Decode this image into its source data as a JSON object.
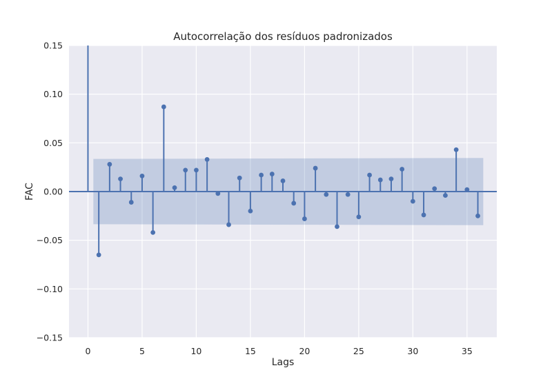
{
  "chart_data": {
    "type": "stem",
    "title": "Autocorrelação dos resíduos padronizados",
    "xlabel": "Lags",
    "ylabel": "FAC",
    "xlim": [
      -1.75,
      37.75
    ],
    "ylim": [
      -0.15,
      0.15
    ],
    "x_ticks": [
      0,
      5,
      10,
      15,
      20,
      25,
      30,
      35
    ],
    "x_tick_labels": [
      "0",
      "5",
      "10",
      "15",
      "20",
      "25",
      "30",
      "35"
    ],
    "y_ticks": [
      -0.15,
      -0.1,
      -0.05,
      0.0,
      0.05,
      0.1,
      0.15
    ],
    "y_tick_labels": [
      "−0.15",
      "−0.10",
      "−0.05",
      "0.00",
      "0.05",
      "0.10",
      "0.15"
    ],
    "grid": true,
    "lags": [
      0,
      1,
      2,
      3,
      4,
      5,
      6,
      7,
      8,
      9,
      10,
      11,
      12,
      13,
      14,
      15,
      16,
      17,
      18,
      19,
      20,
      21,
      22,
      23,
      24,
      25,
      26,
      27,
      28,
      29,
      30,
      31,
      32,
      33,
      34,
      35,
      36
    ],
    "acf": [
      1.0,
      -0.065,
      0.028,
      0.013,
      -0.011,
      0.016,
      -0.042,
      0.087,
      0.004,
      0.022,
      0.022,
      0.033,
      -0.002,
      -0.034,
      0.014,
      -0.02,
      0.017,
      0.018,
      0.011,
      -0.012,
      -0.028,
      0.024,
      -0.003,
      -0.036,
      -0.003,
      -0.026,
      0.017,
      0.012,
      0.013,
      0.023,
      -0.01,
      -0.024,
      0.003,
      -0.004,
      0.043,
      0.002,
      -0.025
    ],
    "confidence_band": {
      "x_range": [
        0.5,
        36.5
      ],
      "upper": [
        0.0335,
        0.0345
      ],
      "lower": [
        -0.0335,
        -0.0345
      ]
    },
    "colors": {
      "stem": "#4c72b0",
      "band": "#4c72b0",
      "plot_bg": "#eaeaf2",
      "grid": "#ffffff"
    }
  }
}
